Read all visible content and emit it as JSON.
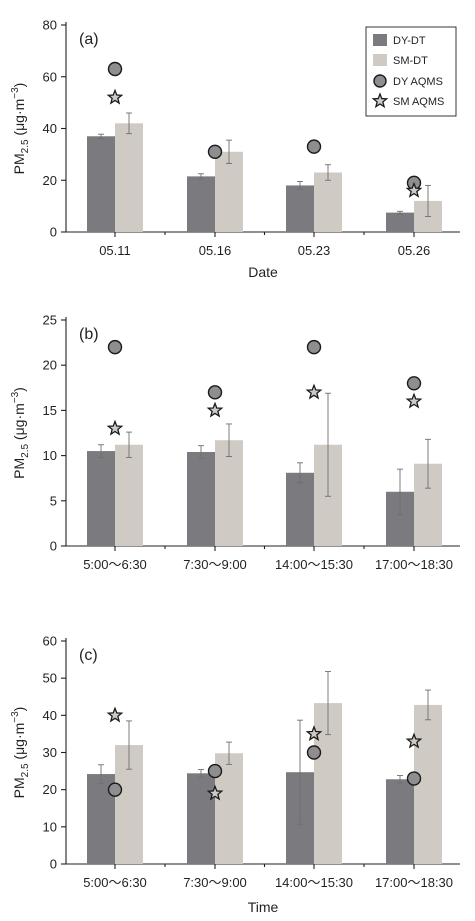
{
  "colors": {
    "dy_dt": "#7b7b7f",
    "sm_dt": "#cfcbc4",
    "dy_aqms": "#8e8d90",
    "axis": "#231f20",
    "error_bar": "#6f6f6f"
  },
  "legend": [
    "DY-DT",
    "SM-DT",
    "DY AQMS",
    "SM AQMS"
  ],
  "chart_data": [
    {
      "type": "bar",
      "panel_label": "(a)",
      "xlabel": "Date",
      "ylabel": "PM2.5 (μg·m−3)",
      "ylabel_parts": {
        "main": "PM",
        "sub": "2.5",
        "unit_open": " (μg·m",
        "sup": "−3",
        "unit_close": ")"
      },
      "ylim": [
        0,
        80
      ],
      "yticks": [
        0,
        20,
        40,
        60,
        80
      ],
      "categories": [
        "05.11",
        "05.16",
        "05.23",
        "05.26"
      ],
      "legend_position": "top-right",
      "series": [
        {
          "name": "DY-DT",
          "kind": "bar",
          "values": [
            37,
            21.5,
            18,
            7.5
          ],
          "err": [
            0.8,
            1.0,
            1.5,
            0.5
          ]
        },
        {
          "name": "SM-DT",
          "kind": "bar",
          "values": [
            42,
            31,
            23,
            12
          ],
          "err": [
            4,
            4.5,
            3,
            6
          ]
        },
        {
          "name": "DY AQMS",
          "kind": "circle",
          "values": [
            63,
            31,
            33,
            19
          ]
        },
        {
          "name": "SM AQMS",
          "kind": "star",
          "values": [
            52,
            null,
            null,
            16
          ]
        }
      ]
    },
    {
      "type": "bar",
      "panel_label": "(b)",
      "xlabel": "",
      "ylabel": "PM2.5 (μg·m−3)",
      "ylabel_parts": {
        "main": "PM",
        "sub": "2.5",
        "unit_open": " (μg·m",
        "sup": "−3",
        "unit_close": ")"
      },
      "ylim": [
        0,
        25
      ],
      "yticks": [
        0,
        5,
        10,
        15,
        20,
        25
      ],
      "categories": [
        "5:00～6:30",
        "7:30～9:00",
        "14:00～15:30",
        "17:00～18:30"
      ],
      "series": [
        {
          "name": "DY-DT",
          "kind": "bar",
          "values": [
            10.5,
            10.4,
            8.1,
            6.0
          ],
          "err": [
            0.7,
            0.7,
            1.1,
            2.5
          ]
        },
        {
          "name": "SM-DT",
          "kind": "bar",
          "values": [
            11.2,
            11.7,
            11.2,
            9.1
          ],
          "err": [
            1.4,
            1.8,
            5.7,
            2.7
          ]
        },
        {
          "name": "DY AQMS",
          "kind": "circle",
          "values": [
            22,
            17,
            22,
            18
          ]
        },
        {
          "name": "SM AQMS",
          "kind": "star",
          "values": [
            13,
            15,
            17,
            16
          ]
        }
      ]
    },
    {
      "type": "bar",
      "panel_label": "(c)",
      "xlabel": "Time",
      "ylabel": "PM2.5 (μg·m−3)",
      "ylabel_parts": {
        "main": "PM",
        "sub": "2.5",
        "unit_open": " (μg·m",
        "sup": "−3",
        "unit_close": ")"
      },
      "ylim": [
        0,
        60
      ],
      "yticks": [
        0,
        10,
        20,
        30,
        40,
        50,
        60
      ],
      "categories": [
        "5:00～6:30",
        "7:30～9:00",
        "14:00～15:30",
        "17:00～18:30"
      ],
      "series": [
        {
          "name": "DY-DT",
          "kind": "bar",
          "values": [
            24.2,
            24.4,
            24.7,
            22.8
          ],
          "err": [
            2.5,
            1.0,
            14,
            1.0
          ]
        },
        {
          "name": "SM-DT",
          "kind": "bar",
          "values": [
            32.0,
            29.8,
            43.3,
            42.8
          ],
          "err": [
            6.5,
            3.0,
            8.5,
            4.0
          ]
        },
        {
          "name": "DY AQMS",
          "kind": "circle",
          "values": [
            20,
            25,
            30,
            23
          ]
        },
        {
          "name": "SM AQMS",
          "kind": "star",
          "values": [
            40,
            19,
            35,
            33
          ]
        }
      ]
    }
  ]
}
